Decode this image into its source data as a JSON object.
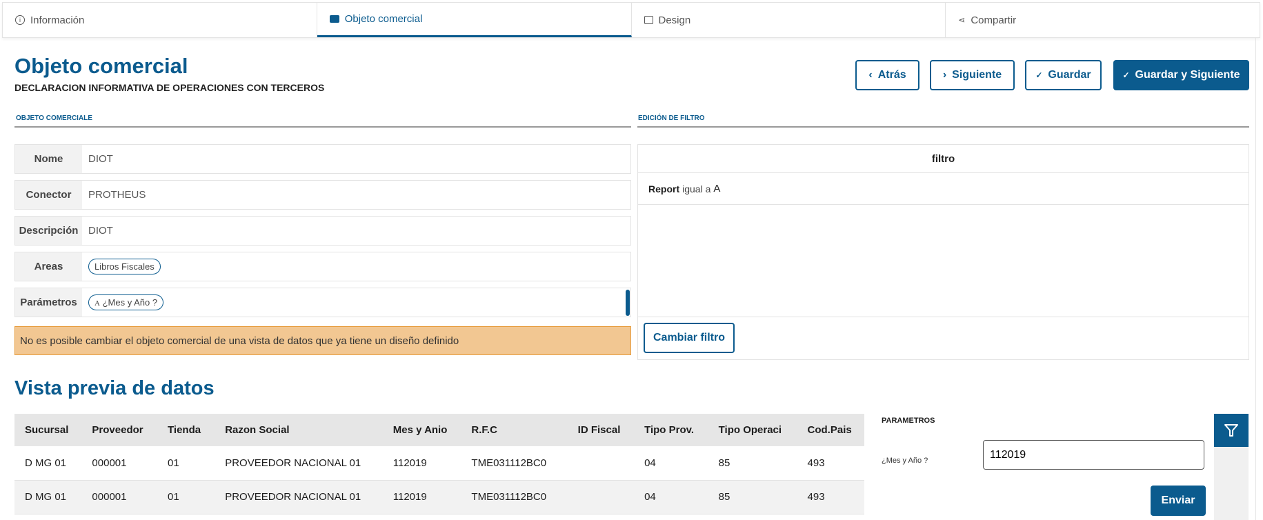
{
  "tabs": [
    {
      "label": "Información",
      "icon": "info-icon"
    },
    {
      "label": "Objeto comercial",
      "icon": "briefcase-icon",
      "active": true
    },
    {
      "label": "Design",
      "icon": "image-icon"
    },
    {
      "label": "Compartir",
      "icon": "share-icon"
    }
  ],
  "header": {
    "title": "Objeto comercial",
    "subtitle": "DECLARACION INFORMATIVA DE OPERACIONES CON TERCEROS"
  },
  "buttons": {
    "back": "Atrás",
    "next": "Siguiente",
    "save": "Guardar",
    "save_next": "Guardar y Siguiente"
  },
  "sections": {
    "left": "OBJETO COMERCIALE",
    "right": "EDICIÓN DE FILTRO"
  },
  "fields": {
    "nome_label": "Nome",
    "nome": "DIOT",
    "conector_label": "Conector",
    "conector": "PROTHEUS",
    "desc_label": "Descripción",
    "desc": "DIOT",
    "areas_label": "Areas",
    "area_chip": "Libros Fiscales",
    "params_label": "Parámetros",
    "param_chip_icon": "A",
    "param_chip": "¿Mes y Año ?"
  },
  "warning": "No es posible cambiar el objeto comercial de una vista de datos que ya tiene un diseño definido",
  "filter": {
    "header": "filtro",
    "field": "Report",
    "op": "igual a",
    "value": "A",
    "change_button": "Cambiar filtro"
  },
  "preview": {
    "title": "Vista previa de datos",
    "columns": [
      "Sucursal",
      "Proveedor",
      "Tienda",
      "Razon Social",
      "Mes y Anio",
      "R.F.C",
      "ID Fiscal",
      "Tipo Prov.",
      "Tipo Operaci",
      "Cod.Pais"
    ],
    "rows": [
      [
        "D MG 01",
        "000001",
        "01",
        "PROVEEDOR NACIONAL 01",
        "112019",
        "TME031112BC0",
        "",
        "04",
        "85",
        "493"
      ],
      [
        "D MG 01",
        "000001",
        "01",
        "PROVEEDOR NACIONAL 01",
        "112019",
        "TME031112BC0",
        "",
        "04",
        "85",
        "493"
      ]
    ]
  },
  "params_panel": {
    "title": "PARAMETROS",
    "label": "¿Mes y Año ?",
    "value": "112019",
    "submit": "Enviar"
  },
  "colors": {
    "primary": "#0b5b8e",
    "warning_bg": "#f2c792"
  }
}
